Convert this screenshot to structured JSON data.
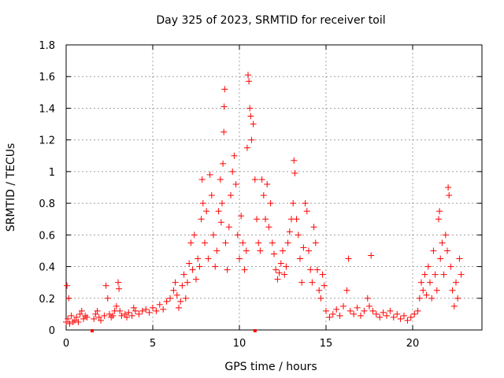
{
  "chart_data": {
    "type": "scatter",
    "title": "Day 325 of 2023, SRMTID for receiver toil",
    "xlabel": "GPS time / hours",
    "ylabel": "SRMTID / TECUs",
    "xlim": [
      0,
      24
    ],
    "ylim": [
      0,
      1.8
    ],
    "xticks": [
      0,
      5,
      10,
      15,
      20
    ],
    "yticks": [
      0,
      0.2,
      0.4,
      0.6,
      0.8,
      1,
      1.2,
      1.4,
      1.6,
      1.8
    ],
    "xtick_labels": [
      "0",
      "5",
      "10",
      "15",
      "20"
    ],
    "ytick_labels": [
      "0",
      "0.2",
      "0.4",
      "0.6",
      "0.8",
      "1",
      "1.2",
      "1.4",
      "1.6",
      "1.8"
    ],
    "grid": true,
    "marker": "plus",
    "color": "#ff0000",
    "series": [
      {
        "name": "SRMTID",
        "points": [
          [
            0.0,
            0.05
          ],
          [
            0.05,
            0.28
          ],
          [
            0.1,
            0.07
          ],
          [
            0.15,
            0.2
          ],
          [
            0.2,
            0.04
          ],
          [
            0.3,
            0.09
          ],
          [
            0.4,
            0.05
          ],
          [
            0.5,
            0.06
          ],
          [
            0.6,
            0.08
          ],
          [
            0.7,
            0.05
          ],
          [
            0.8,
            0.1
          ],
          [
            0.9,
            0.12
          ],
          [
            1.0,
            0.07
          ],
          [
            1.1,
            0.09
          ],
          [
            1.2,
            0.08
          ],
          [
            1.6,
            0.07
          ],
          [
            1.7,
            0.1
          ],
          [
            1.8,
            0.12
          ],
          [
            1.9,
            0.08
          ],
          [
            2.0,
            0.06
          ],
          [
            2.2,
            0.09
          ],
          [
            2.3,
            0.28
          ],
          [
            2.4,
            0.2
          ],
          [
            2.5,
            0.1
          ],
          [
            2.6,
            0.08
          ],
          [
            2.7,
            0.09
          ],
          [
            2.8,
            0.12
          ],
          [
            2.9,
            0.15
          ],
          [
            3.0,
            0.3
          ],
          [
            3.05,
            0.26
          ],
          [
            3.1,
            0.12
          ],
          [
            3.2,
            0.09
          ],
          [
            3.4,
            0.1
          ],
          [
            3.5,
            0.08
          ],
          [
            3.6,
            0.11
          ],
          [
            3.8,
            0.09
          ],
          [
            3.9,
            0.14
          ],
          [
            4.0,
            0.12
          ],
          [
            4.2,
            0.1
          ],
          [
            4.4,
            0.12
          ],
          [
            4.6,
            0.13
          ],
          [
            4.8,
            0.11
          ],
          [
            5.0,
            0.14
          ],
          [
            5.2,
            0.12
          ],
          [
            5.4,
            0.16
          ],
          [
            5.6,
            0.13
          ],
          [
            5.8,
            0.18
          ],
          [
            6.0,
            0.2
          ],
          [
            6.2,
            0.25
          ],
          [
            6.3,
            0.3
          ],
          [
            6.4,
            0.22
          ],
          [
            6.5,
            0.14
          ],
          [
            6.6,
            0.18
          ],
          [
            6.7,
            0.28
          ],
          [
            6.8,
            0.35
          ],
          [
            6.9,
            0.2
          ],
          [
            7.0,
            0.3
          ],
          [
            7.1,
            0.42
          ],
          [
            7.2,
            0.55
          ],
          [
            7.3,
            0.38
          ],
          [
            7.4,
            0.6
          ],
          [
            7.5,
            0.32
          ],
          [
            7.6,
            0.45
          ],
          [
            7.7,
            0.4
          ],
          [
            7.8,
            0.7
          ],
          [
            7.85,
            0.95
          ],
          [
            7.9,
            0.8
          ],
          [
            8.0,
            0.55
          ],
          [
            8.1,
            0.75
          ],
          [
            8.2,
            0.45
          ],
          [
            8.3,
            0.98
          ],
          [
            8.4,
            0.85
          ],
          [
            8.5,
            0.6
          ],
          [
            8.6,
            0.4
          ],
          [
            8.7,
            0.5
          ],
          [
            8.8,
            0.75
          ],
          [
            8.9,
            0.95
          ],
          [
            8.95,
            0.68
          ],
          [
            9.0,
            0.8
          ],
          [
            9.05,
            1.05
          ],
          [
            9.1,
            1.25
          ],
          [
            9.12,
            1.41
          ],
          [
            9.15,
            1.52
          ],
          [
            9.2,
            0.55
          ],
          [
            9.3,
            0.38
          ],
          [
            9.4,
            0.65
          ],
          [
            9.5,
            0.85
          ],
          [
            9.6,
            1.0
          ],
          [
            9.7,
            1.1
          ],
          [
            9.8,
            0.92
          ],
          [
            9.9,
            0.6
          ],
          [
            10.0,
            0.45
          ],
          [
            10.1,
            0.72
          ],
          [
            10.2,
            0.55
          ],
          [
            10.3,
            0.38
          ],
          [
            10.4,
            0.5
          ],
          [
            10.45,
            1.15
          ],
          [
            10.5,
            1.61
          ],
          [
            10.55,
            1.57
          ],
          [
            10.6,
            1.4
          ],
          [
            10.65,
            1.35
          ],
          [
            10.7,
            1.2
          ],
          [
            10.8,
            1.3
          ],
          [
            10.9,
            0.95
          ],
          [
            11.0,
            0.7
          ],
          [
            11.1,
            0.55
          ],
          [
            11.2,
            0.5
          ],
          [
            11.3,
            0.95
          ],
          [
            11.4,
            0.85
          ],
          [
            11.5,
            0.7
          ],
          [
            11.6,
            0.92
          ],
          [
            11.7,
            0.65
          ],
          [
            11.8,
            0.8
          ],
          [
            11.9,
            0.55
          ],
          [
            12.0,
            0.48
          ],
          [
            12.1,
            0.38
          ],
          [
            12.2,
            0.32
          ],
          [
            12.3,
            0.36
          ],
          [
            12.4,
            0.42
          ],
          [
            12.5,
            0.5
          ],
          [
            12.6,
            0.35
          ],
          [
            12.7,
            0.4
          ],
          [
            12.8,
            0.55
          ],
          [
            12.9,
            0.62
          ],
          [
            13.0,
            0.7
          ],
          [
            13.1,
            0.8
          ],
          [
            13.15,
            1.07
          ],
          [
            13.2,
            0.99
          ],
          [
            13.3,
            0.7
          ],
          [
            13.4,
            0.6
          ],
          [
            13.5,
            0.45
          ],
          [
            13.6,
            0.3
          ],
          [
            13.7,
            0.52
          ],
          [
            13.8,
            0.8
          ],
          [
            13.9,
            0.75
          ],
          [
            14.0,
            0.5
          ],
          [
            14.1,
            0.38
          ],
          [
            14.2,
            0.3
          ],
          [
            14.3,
            0.65
          ],
          [
            14.4,
            0.55
          ],
          [
            14.5,
            0.38
          ],
          [
            14.6,
            0.25
          ],
          [
            14.7,
            0.2
          ],
          [
            14.8,
            0.35
          ],
          [
            14.9,
            0.28
          ],
          [
            15.0,
            0.12
          ],
          [
            15.2,
            0.08
          ],
          [
            15.4,
            0.1
          ],
          [
            15.6,
            0.13
          ],
          [
            15.8,
            0.09
          ],
          [
            16.0,
            0.15
          ],
          [
            16.2,
            0.25
          ],
          [
            16.3,
            0.45
          ],
          [
            16.4,
            0.12
          ],
          [
            16.6,
            0.1
          ],
          [
            16.8,
            0.14
          ],
          [
            17.0,
            0.09
          ],
          [
            17.2,
            0.12
          ],
          [
            17.4,
            0.2
          ],
          [
            17.5,
            0.15
          ],
          [
            17.6,
            0.47
          ],
          [
            17.7,
            0.12
          ],
          [
            17.9,
            0.1
          ],
          [
            18.1,
            0.08
          ],
          [
            18.3,
            0.11
          ],
          [
            18.5,
            0.09
          ],
          [
            18.7,
            0.12
          ],
          [
            18.9,
            0.08
          ],
          [
            19.1,
            0.1
          ],
          [
            19.3,
            0.07
          ],
          [
            19.5,
            0.09
          ],
          [
            19.7,
            0.06
          ],
          [
            19.9,
            0.08
          ],
          [
            20.1,
            0.1
          ],
          [
            20.3,
            0.12
          ],
          [
            20.4,
            0.2
          ],
          [
            20.5,
            0.3
          ],
          [
            20.6,
            0.25
          ],
          [
            20.7,
            0.35
          ],
          [
            20.8,
            0.22
          ],
          [
            20.9,
            0.4
          ],
          [
            21.0,
            0.3
          ],
          [
            21.1,
            0.2
          ],
          [
            21.2,
            0.5
          ],
          [
            21.3,
            0.35
          ],
          [
            21.4,
            0.25
          ],
          [
            21.5,
            0.7
          ],
          [
            21.55,
            0.75
          ],
          [
            21.6,
            0.45
          ],
          [
            21.7,
            0.55
          ],
          [
            21.8,
            0.35
          ],
          [
            21.9,
            0.6
          ],
          [
            22.0,
            0.5
          ],
          [
            22.05,
            0.9
          ],
          [
            22.1,
            0.85
          ],
          [
            22.2,
            0.4
          ],
          [
            22.3,
            0.25
          ],
          [
            22.4,
            0.15
          ],
          [
            22.5,
            0.3
          ],
          [
            22.6,
            0.2
          ],
          [
            22.7,
            0.45
          ],
          [
            22.8,
            0.35
          ]
        ]
      }
    ],
    "outliers_below_axis": [
      [
        1.5,
        0.0
      ],
      [
        10.9,
        0.0
      ]
    ]
  }
}
